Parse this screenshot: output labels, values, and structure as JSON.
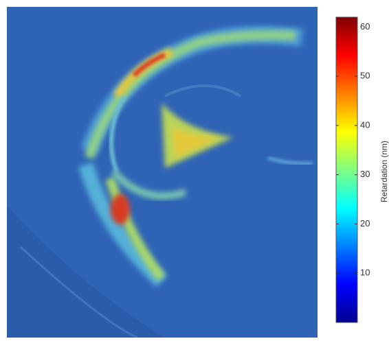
{
  "chart_data": {
    "type": "heatmap",
    "colormap": "jet",
    "colorbar_label": "Retardation (nm)",
    "clim": [
      0,
      62
    ],
    "cticks": [
      10,
      20,
      30,
      40,
      50,
      60
    ]
  }
}
